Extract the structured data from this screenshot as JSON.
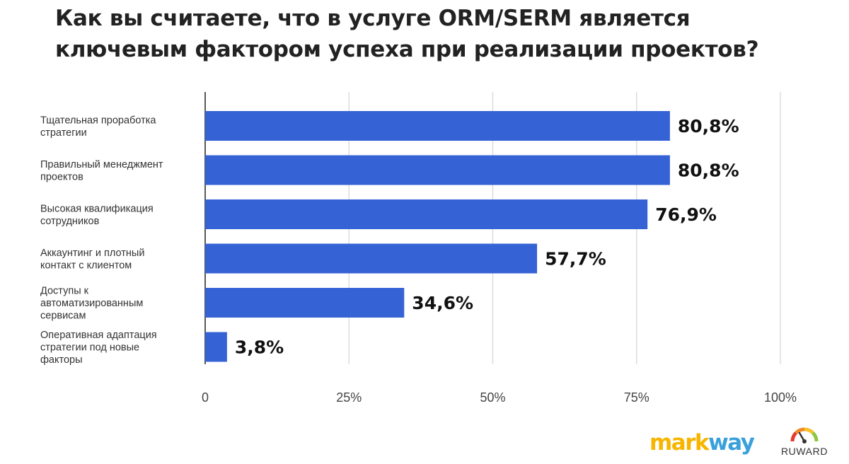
{
  "chart_data": {
    "type": "bar",
    "orientation": "horizontal",
    "title_lines": [
      "Как вы считаете, что в услуге ORM/SERM является",
      "ключевым фактором успеха при реализации проектов?"
    ],
    "categories": [
      [
        "Тщательная проработка",
        "стратегии"
      ],
      [
        "Правильный менеджмент",
        "проектов"
      ],
      [
        "Высокая квалификация",
        "сотрудников"
      ],
      [
        "Аккаунтинг и плотный",
        "контакт с клиентом"
      ],
      [
        "Доступы к",
        "автоматизированным",
        "сервисам"
      ],
      [
        "Оперативная адаптация",
        "стратегии под новые",
        "факторы"
      ]
    ],
    "values": [
      80.8,
      80.8,
      76.9,
      57.7,
      34.6,
      3.8
    ],
    "value_labels": [
      "80,8%",
      "80,8%",
      "76,9%",
      "57,7%",
      "34,6%",
      "3,8%"
    ],
    "xlim": [
      0,
      100
    ],
    "x_ticks": [
      0,
      25,
      50,
      75,
      100
    ],
    "x_tick_labels": [
      "0",
      "25%",
      "50%",
      "75%",
      "100%"
    ],
    "grid": "vertical",
    "bar_color": "#3562d4",
    "grid_color": "#dddddd"
  },
  "logos": {
    "markway": {
      "part1": "mark",
      "part2": "way",
      "color1": "#f7b500",
      "color2": "#3aa0dc"
    },
    "ruward": {
      "name": "RUWARD"
    }
  }
}
